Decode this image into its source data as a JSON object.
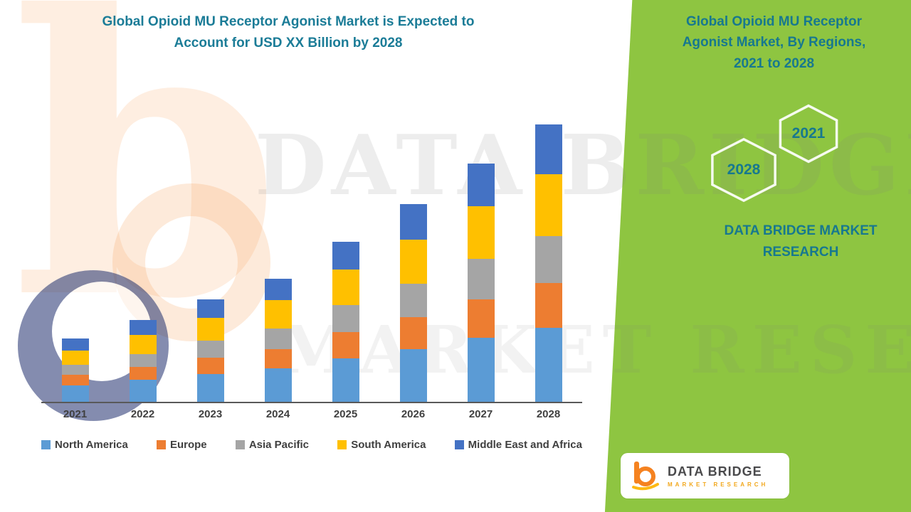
{
  "left_title": {
    "line1": "Global Opioid MU Receptor Agonist Market is Expected to",
    "line2": "Account for USD XX Billion by 2028"
  },
  "right_panel": {
    "title_line1": "Global Opioid MU Receptor",
    "title_line2": "Agonist Market, By Regions,",
    "title_line3": "2021 to 2028",
    "hexagons": [
      {
        "label": "2021"
      },
      {
        "label": "2028"
      }
    ],
    "brand_line1": "DATA BRIDGE MARKET",
    "brand_line2": "RESEARCH"
  },
  "watermark": {
    "line1": "DATA BRIDGE",
    "line2": "MARKET RESEARCH"
  },
  "footer_logo": {
    "brand": "DATA BRIDGE",
    "sub": "MARKET RESEARCH"
  },
  "chart_data": {
    "type": "bar",
    "stacked": true,
    "title": "Global Opioid MU Receptor Agonist Market, By Regions, 2021 to 2028",
    "categories": [
      "2021",
      "2022",
      "2023",
      "2024",
      "2025",
      "2026",
      "2027",
      "2028"
    ],
    "series": [
      {
        "name": "North America",
        "color": "#5B9BD5",
        "values": [
          2.3,
          3.0,
          3.8,
          4.6,
          6.0,
          7.3,
          8.8,
          10.2
        ]
      },
      {
        "name": "Europe",
        "color": "#ED7D31",
        "values": [
          1.4,
          1.8,
          2.3,
          2.7,
          3.6,
          4.4,
          5.3,
          6.2
        ]
      },
      {
        "name": "Asia Pacific",
        "color": "#A5A5A5",
        "values": [
          1.4,
          1.8,
          2.3,
          2.8,
          3.7,
          4.6,
          5.6,
          6.5
        ]
      },
      {
        "name": "South America",
        "color": "#FFC000",
        "values": [
          2.0,
          2.6,
          3.2,
          3.9,
          4.9,
          6.1,
          7.3,
          8.5
        ]
      },
      {
        "name": "Middle East and Africa",
        "color": "#4472C4",
        "values": [
          1.6,
          2.1,
          2.5,
          3.0,
          3.9,
          4.9,
          5.8,
          6.8
        ]
      }
    ],
    "xlabel": "",
    "ylabel": "",
    "ylim": [
      0,
      40
    ],
    "grid": false,
    "y_axis_visible": false,
    "legend_position": "bottom",
    "note": "No y-axis scale shown in source; segment values estimated in relative units (USD XX Billion undisclosed)"
  }
}
